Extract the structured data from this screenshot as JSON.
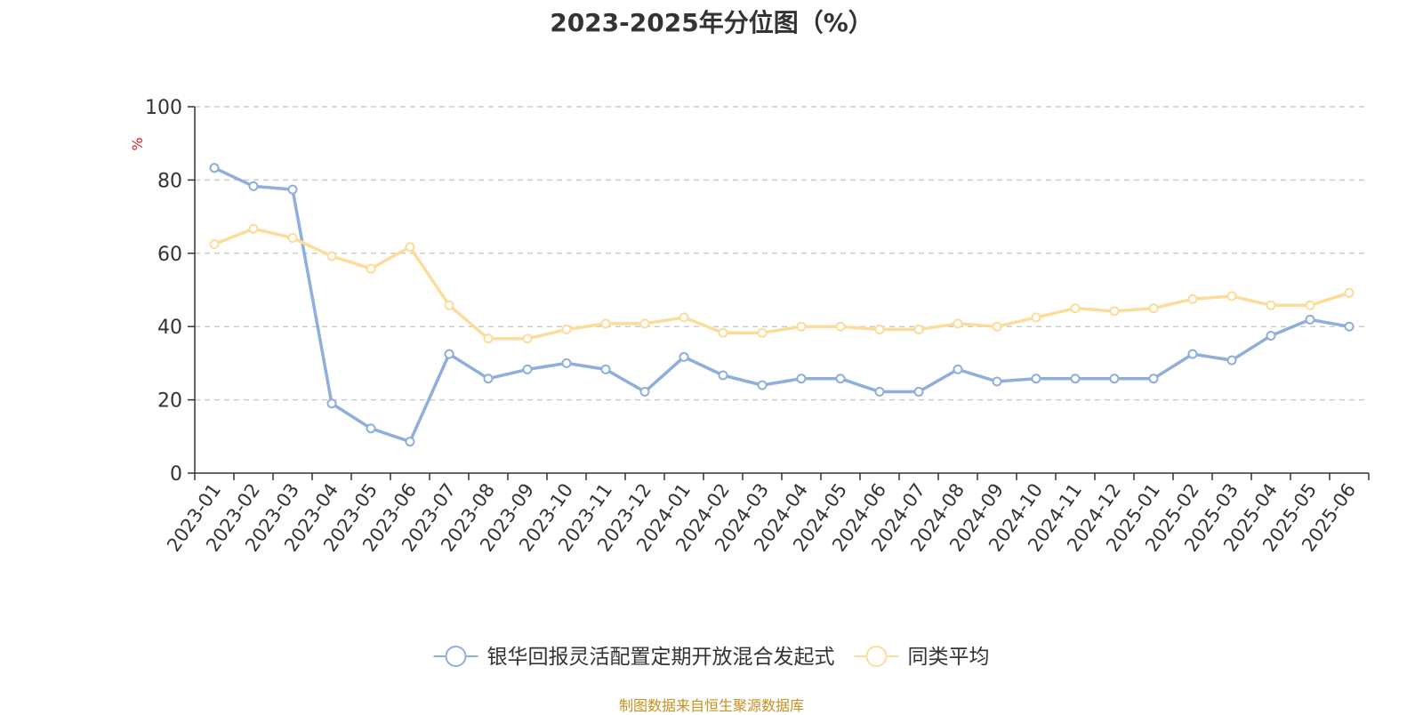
{
  "chart_data": {
    "type": "line",
    "title": "2023-2025年分位图（%）",
    "ylabel": "%",
    "xlabel": "",
    "ylim": [
      0,
      100
    ],
    "yticks": [
      0,
      20,
      40,
      60,
      80,
      100
    ],
    "grid": true,
    "legend_position": "bottom",
    "categories": [
      "2023-01",
      "2023-02",
      "2023-03",
      "2023-04",
      "2023-05",
      "2023-06",
      "2023-07",
      "2023-08",
      "2023-09",
      "2023-10",
      "2023-11",
      "2023-12",
      "2024-01",
      "2024-02",
      "2024-03",
      "2024-04",
      "2024-05",
      "2024-06",
      "2024-07",
      "2024-08",
      "2024-09",
      "2024-10",
      "2024-11",
      "2024-12",
      "2025-01",
      "2025-02",
      "2025-03",
      "2025-04",
      "2025-05",
      "2025-06"
    ],
    "series": [
      {
        "name": "银华回报灵活配置定期开放混合发起式",
        "color": "#8eaedb",
        "values": [
          83.3,
          78.3,
          77.4,
          19.0,
          12.2,
          8.6,
          32.5,
          25.8,
          28.3,
          30.0,
          28.3,
          22.2,
          31.7,
          26.7,
          24.0,
          25.8,
          25.8,
          22.2,
          22.2,
          28.3,
          25.0,
          25.8,
          25.8,
          25.8,
          25.8,
          32.5,
          30.8,
          37.5,
          41.9,
          40.0
        ]
      },
      {
        "name": "同类平均",
        "color": "#fddc9a",
        "values": [
          62.5,
          66.7,
          64.2,
          59.2,
          55.8,
          61.7,
          45.8,
          36.7,
          36.7,
          39.2,
          40.8,
          40.8,
          42.5,
          38.3,
          38.3,
          40.0,
          40.0,
          39.2,
          39.2,
          40.8,
          40.0,
          42.5,
          45.0,
          44.2,
          45.0,
          47.5,
          48.3,
          45.8,
          45.8,
          49.2
        ]
      }
    ]
  },
  "footer": {
    "source": "制图数据来自恒生聚源数据库"
  }
}
